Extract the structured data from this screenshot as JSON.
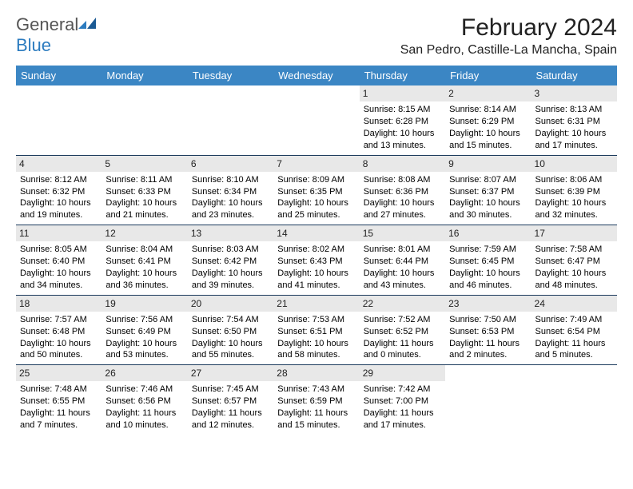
{
  "logo": {
    "text1": "General",
    "text2": "Blue"
  },
  "header": {
    "title": "February 2024",
    "location": "San Pedro, Castille-La Mancha, Spain"
  },
  "colors": {
    "header_bg": "#3b86c4",
    "header_fg": "#ffffff",
    "daynum_bg": "#e8e8e8",
    "row_border": "#1b3a5c",
    "logo_blue": "#2b7bbf",
    "logo_gray": "#555555"
  },
  "days_of_week": [
    "Sunday",
    "Monday",
    "Tuesday",
    "Wednesday",
    "Thursday",
    "Friday",
    "Saturday"
  ],
  "weeks": [
    [
      null,
      null,
      null,
      null,
      {
        "n": "1",
        "sr": "Sunrise: 8:15 AM",
        "ss": "Sunset: 6:28 PM",
        "dl": "Daylight: 10 hours and 13 minutes."
      },
      {
        "n": "2",
        "sr": "Sunrise: 8:14 AM",
        "ss": "Sunset: 6:29 PM",
        "dl": "Daylight: 10 hours and 15 minutes."
      },
      {
        "n": "3",
        "sr": "Sunrise: 8:13 AM",
        "ss": "Sunset: 6:31 PM",
        "dl": "Daylight: 10 hours and 17 minutes."
      }
    ],
    [
      {
        "n": "4",
        "sr": "Sunrise: 8:12 AM",
        "ss": "Sunset: 6:32 PM",
        "dl": "Daylight: 10 hours and 19 minutes."
      },
      {
        "n": "5",
        "sr": "Sunrise: 8:11 AM",
        "ss": "Sunset: 6:33 PM",
        "dl": "Daylight: 10 hours and 21 minutes."
      },
      {
        "n": "6",
        "sr": "Sunrise: 8:10 AM",
        "ss": "Sunset: 6:34 PM",
        "dl": "Daylight: 10 hours and 23 minutes."
      },
      {
        "n": "7",
        "sr": "Sunrise: 8:09 AM",
        "ss": "Sunset: 6:35 PM",
        "dl": "Daylight: 10 hours and 25 minutes."
      },
      {
        "n": "8",
        "sr": "Sunrise: 8:08 AM",
        "ss": "Sunset: 6:36 PM",
        "dl": "Daylight: 10 hours and 27 minutes."
      },
      {
        "n": "9",
        "sr": "Sunrise: 8:07 AM",
        "ss": "Sunset: 6:37 PM",
        "dl": "Daylight: 10 hours and 30 minutes."
      },
      {
        "n": "10",
        "sr": "Sunrise: 8:06 AM",
        "ss": "Sunset: 6:39 PM",
        "dl": "Daylight: 10 hours and 32 minutes."
      }
    ],
    [
      {
        "n": "11",
        "sr": "Sunrise: 8:05 AM",
        "ss": "Sunset: 6:40 PM",
        "dl": "Daylight: 10 hours and 34 minutes."
      },
      {
        "n": "12",
        "sr": "Sunrise: 8:04 AM",
        "ss": "Sunset: 6:41 PM",
        "dl": "Daylight: 10 hours and 36 minutes."
      },
      {
        "n": "13",
        "sr": "Sunrise: 8:03 AM",
        "ss": "Sunset: 6:42 PM",
        "dl": "Daylight: 10 hours and 39 minutes."
      },
      {
        "n": "14",
        "sr": "Sunrise: 8:02 AM",
        "ss": "Sunset: 6:43 PM",
        "dl": "Daylight: 10 hours and 41 minutes."
      },
      {
        "n": "15",
        "sr": "Sunrise: 8:01 AM",
        "ss": "Sunset: 6:44 PM",
        "dl": "Daylight: 10 hours and 43 minutes."
      },
      {
        "n": "16",
        "sr": "Sunrise: 7:59 AM",
        "ss": "Sunset: 6:45 PM",
        "dl": "Daylight: 10 hours and 46 minutes."
      },
      {
        "n": "17",
        "sr": "Sunrise: 7:58 AM",
        "ss": "Sunset: 6:47 PM",
        "dl": "Daylight: 10 hours and 48 minutes."
      }
    ],
    [
      {
        "n": "18",
        "sr": "Sunrise: 7:57 AM",
        "ss": "Sunset: 6:48 PM",
        "dl": "Daylight: 10 hours and 50 minutes."
      },
      {
        "n": "19",
        "sr": "Sunrise: 7:56 AM",
        "ss": "Sunset: 6:49 PM",
        "dl": "Daylight: 10 hours and 53 minutes."
      },
      {
        "n": "20",
        "sr": "Sunrise: 7:54 AM",
        "ss": "Sunset: 6:50 PM",
        "dl": "Daylight: 10 hours and 55 minutes."
      },
      {
        "n": "21",
        "sr": "Sunrise: 7:53 AM",
        "ss": "Sunset: 6:51 PM",
        "dl": "Daylight: 10 hours and 58 minutes."
      },
      {
        "n": "22",
        "sr": "Sunrise: 7:52 AM",
        "ss": "Sunset: 6:52 PM",
        "dl": "Daylight: 11 hours and 0 minutes."
      },
      {
        "n": "23",
        "sr": "Sunrise: 7:50 AM",
        "ss": "Sunset: 6:53 PM",
        "dl": "Daylight: 11 hours and 2 minutes."
      },
      {
        "n": "24",
        "sr": "Sunrise: 7:49 AM",
        "ss": "Sunset: 6:54 PM",
        "dl": "Daylight: 11 hours and 5 minutes."
      }
    ],
    [
      {
        "n": "25",
        "sr": "Sunrise: 7:48 AM",
        "ss": "Sunset: 6:55 PM",
        "dl": "Daylight: 11 hours and 7 minutes."
      },
      {
        "n": "26",
        "sr": "Sunrise: 7:46 AM",
        "ss": "Sunset: 6:56 PM",
        "dl": "Daylight: 11 hours and 10 minutes."
      },
      {
        "n": "27",
        "sr": "Sunrise: 7:45 AM",
        "ss": "Sunset: 6:57 PM",
        "dl": "Daylight: 11 hours and 12 minutes."
      },
      {
        "n": "28",
        "sr": "Sunrise: 7:43 AM",
        "ss": "Sunset: 6:59 PM",
        "dl": "Daylight: 11 hours and 15 minutes."
      },
      {
        "n": "29",
        "sr": "Sunrise: 7:42 AM",
        "ss": "Sunset: 7:00 PM",
        "dl": "Daylight: 11 hours and 17 minutes."
      },
      null,
      null
    ]
  ]
}
